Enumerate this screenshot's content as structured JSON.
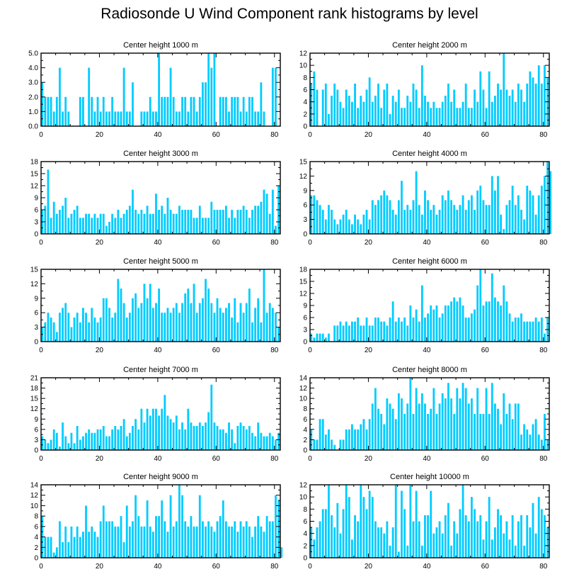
{
  "title": "Radiosonde U Wind Component rank histograms by level",
  "colors": {
    "bar": "#00ccff",
    "axis": "#000000"
  },
  "chart_data": [
    {
      "type": "bar",
      "title": "Center height 1000 m",
      "xlim": [
        0,
        82
      ],
      "xticks": [
        0,
        20,
        40,
        60,
        80
      ],
      "ylim": [
        0,
        5
      ],
      "yticks": [
        0,
        1,
        2,
        3,
        4,
        5
      ],
      "ytick_labels": [
        "0.0",
        "1.0",
        "2.0",
        "3.0",
        "4.0",
        "5.0"
      ],
      "values": [
        3,
        2,
        2,
        2,
        1,
        2,
        4,
        1,
        2,
        1,
        0,
        0,
        0,
        2,
        2,
        0,
        4,
        2,
        1,
        2,
        1,
        2,
        1,
        1,
        2,
        1,
        1,
        1,
        4,
        1,
        1,
        3,
        0,
        0,
        1,
        1,
        1,
        2,
        1,
        1,
        5,
        2,
        2,
        2,
        4,
        2,
        1,
        1,
        2,
        2,
        1,
        2,
        2,
        1,
        2,
        3,
        3,
        5,
        4,
        5,
        0,
        2,
        2,
        2,
        1,
        2,
        2,
        2,
        1,
        2,
        1,
        2,
        2,
        1,
        1,
        3,
        1,
        0,
        0,
        4,
        4,
        0
      ]
    },
    {
      "type": "bar",
      "title": "Center height 2000 m",
      "xlim": [
        0,
        82
      ],
      "xticks": [
        0,
        20,
        40,
        60,
        80
      ],
      "ylim": [
        0,
        12
      ],
      "yticks": [
        0,
        2,
        4,
        6,
        8,
        10,
        12
      ],
      "values": [
        7,
        9,
        6,
        0,
        6,
        7,
        2,
        5,
        7,
        6,
        4,
        3,
        6,
        5,
        4,
        7,
        3,
        5,
        4,
        6,
        8,
        4,
        5,
        7,
        3,
        6,
        7,
        2,
        5,
        4,
        6,
        3,
        3,
        5,
        4,
        7,
        6,
        3,
        10,
        5,
        4,
        3,
        4,
        3,
        3,
        4,
        5,
        7,
        4,
        6,
        3,
        3,
        4,
        7,
        3,
        3,
        6,
        4,
        9,
        6,
        3,
        9,
        4,
        5,
        7,
        6,
        12,
        6,
        5,
        6,
        4,
        7,
        6,
        4,
        7,
        9,
        8,
        7,
        10,
        7,
        10,
        8
      ]
    },
    {
      "type": "bar",
      "title": "Center height 3000 m",
      "xlim": [
        0,
        82
      ],
      "xticks": [
        0,
        20,
        40,
        60,
        80
      ],
      "ylim": [
        0,
        18
      ],
      "yticks": [
        0,
        3,
        6,
        9,
        12,
        15,
        18
      ],
      "values": [
        6,
        7,
        16,
        4,
        8,
        5,
        6,
        7,
        9,
        4,
        5,
        6,
        7,
        4,
        4,
        5,
        5,
        4,
        5,
        4,
        5,
        5,
        2,
        3,
        5,
        4,
        6,
        4,
        5,
        6,
        7,
        11,
        6,
        5,
        6,
        5,
        7,
        5,
        5,
        10,
        6,
        7,
        5,
        9,
        6,
        5,
        5,
        7,
        6,
        6,
        6,
        6,
        4,
        4,
        7,
        4,
        4,
        4,
        8,
        6,
        6,
        6,
        6,
        7,
        4,
        6,
        4,
        6,
        6,
        7,
        6,
        4,
        6,
        7,
        7,
        8,
        11,
        10,
        5,
        11,
        2,
        12
      ]
    },
    {
      "type": "bar",
      "title": "Center height 4000 m",
      "xlim": [
        0,
        82
      ],
      "xticks": [
        0,
        20,
        40,
        60,
        80
      ],
      "ylim": [
        0,
        15
      ],
      "yticks": [
        0,
        3,
        6,
        9,
        12,
        15
      ],
      "values": [
        8,
        8,
        7,
        6,
        5,
        3,
        6,
        5,
        3,
        2,
        3,
        4,
        5,
        3,
        2,
        4,
        3,
        2,
        4,
        5,
        3,
        7,
        6,
        7,
        8,
        9,
        8,
        7,
        5,
        4,
        7,
        11,
        5,
        6,
        5,
        7,
        13,
        6,
        4,
        9,
        7,
        5,
        6,
        4,
        5,
        8,
        7,
        9,
        7,
        6,
        5,
        6,
        8,
        5,
        7,
        8,
        5,
        9,
        10,
        7,
        6,
        6,
        12,
        9,
        12,
        4,
        1,
        6,
        7,
        10,
        6,
        8,
        5,
        3,
        10,
        9,
        8,
        4,
        8,
        10,
        12,
        15,
        13
      ]
    },
    {
      "type": "bar",
      "title": "Center height 5000 m",
      "xlim": [
        0,
        82
      ],
      "xticks": [
        0,
        20,
        40,
        60,
        80
      ],
      "ylim": [
        0,
        15
      ],
      "yticks": [
        0,
        3,
        6,
        9,
        12,
        15
      ],
      "values": [
        3,
        4,
        6,
        5,
        4,
        2,
        6,
        7,
        8,
        6,
        3,
        5,
        6,
        4,
        7,
        6,
        4,
        7,
        5,
        4,
        5,
        9,
        9,
        7,
        5,
        6,
        13,
        11,
        8,
        5,
        6,
        9,
        10,
        7,
        8,
        12,
        9,
        12,
        7,
        8,
        11,
        6,
        6,
        7,
        6,
        7,
        8,
        6,
        8,
        10,
        11,
        8,
        12,
        6,
        8,
        9,
        13,
        11,
        8,
        6,
        9,
        7,
        6,
        7,
        8,
        5,
        9,
        4,
        8,
        6,
        8,
        11,
        4,
        7,
        9,
        4,
        15,
        6,
        8,
        7,
        6,
        3
      ]
    },
    {
      "type": "bar",
      "title": "Center height 6000 m",
      "xlim": [
        0,
        82
      ],
      "xticks": [
        0,
        20,
        40,
        60,
        80
      ],
      "ylim": [
        0,
        18
      ],
      "yticks": [
        0,
        3,
        6,
        9,
        12,
        15,
        18
      ],
      "values": [
        2,
        1,
        2,
        2,
        2,
        1,
        2,
        0,
        4,
        4,
        5,
        4,
        5,
        4,
        5,
        5,
        6,
        4,
        4,
        6,
        4,
        4,
        6,
        6,
        5,
        5,
        4,
        6,
        10,
        5,
        6,
        5,
        6,
        4,
        9,
        6,
        8,
        5,
        14,
        6,
        7,
        9,
        8,
        9,
        6,
        7,
        9,
        9,
        10,
        11,
        10,
        11,
        9,
        6,
        6,
        7,
        8,
        14,
        18,
        9,
        10,
        10,
        17,
        11,
        10,
        9,
        14,
        10,
        7,
        5,
        6,
        6,
        7,
        5,
        5,
        5,
        5,
        6,
        5,
        6,
        2,
        6
      ]
    },
    {
      "type": "bar",
      "title": "Center height 7000 m",
      "xlim": [
        0,
        82
      ],
      "xticks": [
        0,
        20,
        40,
        60,
        80
      ],
      "ylim": [
        0,
        21
      ],
      "yticks": [
        0,
        3,
        6,
        9,
        12,
        15,
        18,
        21
      ],
      "values": [
        4,
        3,
        2,
        3,
        6,
        5,
        1,
        8,
        4,
        2,
        5,
        2,
        7,
        3,
        4,
        5,
        6,
        5,
        5,
        6,
        6,
        7,
        4,
        4,
        6,
        7,
        6,
        7,
        9,
        4,
        5,
        7,
        9,
        6,
        12,
        8,
        12,
        10,
        12,
        12,
        10,
        12,
        16,
        10,
        9,
        8,
        10,
        6,
        8,
        6,
        12,
        8,
        7,
        7,
        8,
        7,
        8,
        11,
        19,
        8,
        7,
        6,
        6,
        5,
        8,
        6,
        2,
        7,
        8,
        7,
        6,
        7,
        5,
        4,
        8,
        5,
        4,
        4,
        5,
        4,
        3,
        5
      ]
    },
    {
      "type": "bar",
      "title": "Center height 8000 m",
      "xlim": [
        0,
        82
      ],
      "xticks": [
        0,
        20,
        40,
        60,
        80
      ],
      "ylim": [
        0,
        14
      ],
      "yticks": [
        0,
        2,
        4,
        6,
        8,
        10,
        12,
        14
      ],
      "values": [
        4,
        2,
        2,
        6,
        6,
        3,
        4,
        2,
        1,
        0,
        2,
        2,
        4,
        4,
        5,
        4,
        4,
        5,
        6,
        4,
        6,
        9,
        12,
        8,
        7,
        5,
        10,
        9,
        8,
        6,
        11,
        10,
        7,
        9,
        14,
        7,
        12,
        9,
        11,
        9,
        7,
        8,
        12,
        7,
        9,
        11,
        10,
        13,
        10,
        7,
        12,
        10,
        13,
        12,
        9,
        10,
        7,
        12,
        7,
        7,
        12,
        7,
        13,
        9,
        8,
        5,
        11,
        7,
        9,
        6,
        9,
        9,
        3,
        5,
        4,
        3,
        5,
        6,
        3,
        2,
        7,
        2
      ]
    },
    {
      "type": "bar",
      "title": "Center height 9000 m",
      "xlim": [
        0,
        82
      ],
      "xticks": [
        0,
        20,
        40,
        60,
        80
      ],
      "ylim": [
        0,
        14
      ],
      "yticks": [
        0,
        2,
        4,
        6,
        8,
        10,
        12,
        14
      ],
      "values": [
        8,
        4,
        4,
        4,
        1,
        2,
        7,
        3,
        6,
        3,
        6,
        4,
        6,
        4,
        5,
        10,
        5,
        6,
        5,
        4,
        7,
        10,
        7,
        7,
        7,
        6,
        6,
        8,
        3,
        10,
        6,
        7,
        12,
        8,
        6,
        6,
        11,
        6,
        5,
        8,
        8,
        11,
        7,
        5,
        12,
        6,
        7,
        14,
        12,
        7,
        6,
        8,
        6,
        6,
        12,
        7,
        6,
        7,
        6,
        5,
        7,
        8,
        11,
        7,
        6,
        6,
        7,
        5,
        7,
        6,
        7,
        6,
        4,
        6,
        8,
        6,
        5,
        8,
        7,
        7,
        12,
        11,
        2
      ]
    },
    {
      "type": "bar",
      "title": "Center height 10000 m",
      "xlim": [
        0,
        82
      ],
      "xticks": [
        0,
        20,
        40,
        60,
        80
      ],
      "ylim": [
        0,
        12
      ],
      "yticks": [
        0,
        2,
        4,
        6,
        8,
        10,
        12
      ],
      "values": [
        5,
        3,
        5,
        6,
        8,
        8,
        12,
        7,
        5,
        9,
        4,
        8,
        12,
        10,
        3,
        7,
        6,
        12,
        10,
        8,
        11,
        10,
        6,
        5,
        5,
        4,
        6,
        2,
        5,
        12,
        1,
        11,
        8,
        2,
        12,
        6,
        11,
        6,
        2,
        7,
        7,
        11,
        4,
        5,
        6,
        4,
        7,
        9,
        2,
        6,
        4,
        8,
        12,
        7,
        6,
        10,
        8,
        6,
        7,
        3,
        6,
        10,
        3,
        5,
        8,
        7,
        4,
        6,
        3,
        7,
        2,
        6,
        7,
        2,
        7,
        5,
        9,
        4,
        10,
        8,
        7,
        5
      ]
    }
  ]
}
